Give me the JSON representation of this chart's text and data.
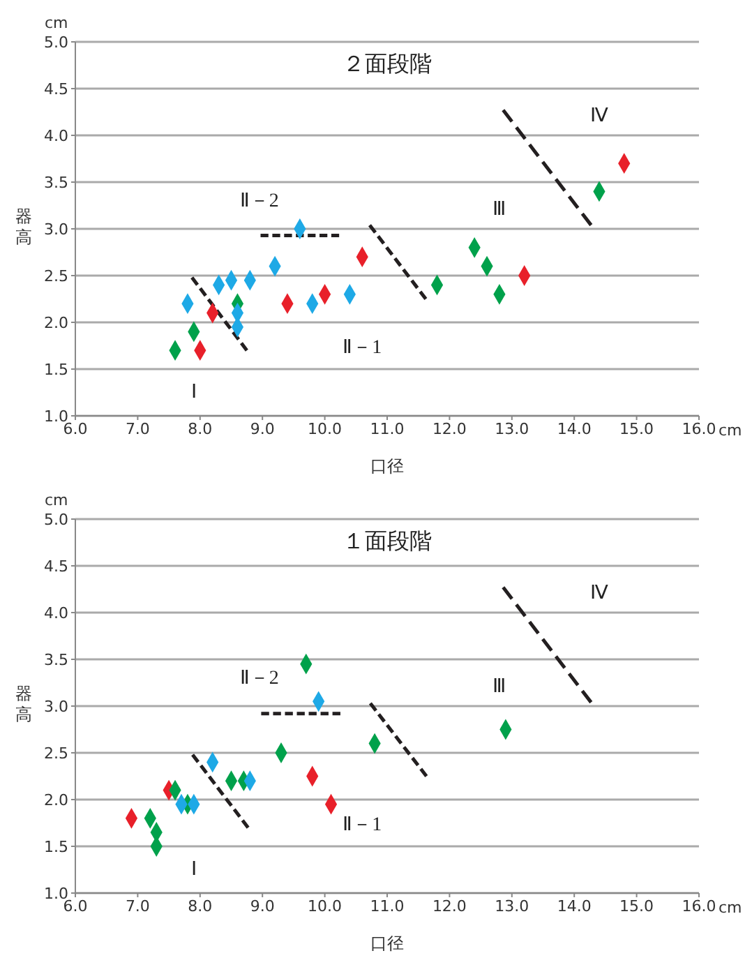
{
  "chart_data": [
    {
      "type": "scatter",
      "title": "２面段階",
      "xlabel": "口径",
      "ylabel": "器高",
      "xlim": [
        6,
        16
      ],
      "ylim": [
        1,
        5
      ],
      "xticks": [
        {
          "value": 6,
          "label": "6.0"
        },
        {
          "value": 7,
          "label": "7.0"
        },
        {
          "value": 8,
          "label": "8.0"
        },
        {
          "value": 9,
          "label": "9.0"
        },
        {
          "value": 10,
          "label": "10.0"
        },
        {
          "value": 11,
          "label": "11.0"
        },
        {
          "value": 12,
          "label": "12.0"
        },
        {
          "value": 13,
          "label": "13.0"
        },
        {
          "value": 14,
          "label": "14.0"
        },
        {
          "value": 15,
          "label": "15.0"
        },
        {
          "value": 16,
          "label": "16.0"
        }
      ],
      "yticks": [
        {
          "value": 1,
          "label": "1.0"
        },
        {
          "value": 1.5,
          "label": "1.5"
        },
        {
          "value": 2,
          "label": "2.0"
        },
        {
          "value": 2.5,
          "label": "2.5"
        },
        {
          "value": 3,
          "label": "3.0"
        },
        {
          "value": 3.5,
          "label": "3.5"
        },
        {
          "value": 4,
          "label": "4.0"
        },
        {
          "value": 4.5,
          "label": "4.5"
        },
        {
          "value": 5,
          "label": "5.0"
        }
      ],
      "grid": "y",
      "marker": "diamond",
      "series": [
        {
          "color": "#e8202a",
          "x": [
            8.0,
            8.2,
            9.4,
            10.0,
            10.6,
            13.2,
            14.8
          ],
          "values": [
            1.7,
            2.1,
            2.2,
            2.3,
            2.7,
            2.5,
            3.7
          ]
        },
        {
          "color": "#00a14b",
          "x": [
            7.6,
            7.9,
            8.6,
            11.8,
            12.4,
            12.6,
            12.8,
            14.4
          ],
          "values": [
            1.7,
            1.9,
            2.2,
            2.4,
            2.8,
            2.6,
            2.3,
            3.4
          ]
        },
        {
          "color": "#1ea9e6",
          "x": [
            7.8,
            8.3,
            8.5,
            8.8,
            8.6,
            8.6,
            9.2,
            9.6,
            9.8,
            10.4
          ],
          "values": [
            2.2,
            2.4,
            2.45,
            2.45,
            2.1,
            1.95,
            2.6,
            3.0,
            2.2,
            2.3
          ]
        },
        {
          "type": "line",
          "color": "#231f20",
          "line_style": "dashed",
          "marker": "none",
          "x": [
            7.87,
            8.75
          ],
          "values": [
            2.48,
            1.7
          ]
        },
        {
          "type": "line",
          "color": "#231f20",
          "line_style": "dashed",
          "marker": "none",
          "x": [
            8.97,
            10.23
          ],
          "values": [
            2.93,
            2.93
          ]
        },
        {
          "type": "line",
          "color": "#231f20",
          "line_style": "dashed",
          "marker": "none",
          "x": [
            10.72,
            11.62
          ],
          "values": [
            3.04,
            2.25
          ]
        },
        {
          "type": "line",
          "color": "#231f20",
          "line_style": "dashed",
          "marker": "none",
          "x": [
            12.86,
            14.27
          ],
          "values": [
            4.27,
            3.04
          ]
        }
      ],
      "annotations": [
        "cm",
        "cm",
        "Ⅰ",
        "Ⅱ－2",
        "Ⅱ－1",
        "Ⅲ",
        "Ⅳ"
      ]
    },
    {
      "type": "scatter",
      "title": "１面段階",
      "xlabel": "口径",
      "ylabel": "器高",
      "xlim": [
        6,
        16
      ],
      "ylim": [
        1,
        5
      ],
      "xticks": [
        {
          "value": 6,
          "label": "6.0"
        },
        {
          "value": 7,
          "label": "7.0"
        },
        {
          "value": 8,
          "label": "8.0"
        },
        {
          "value": 9,
          "label": "9.0"
        },
        {
          "value": 10,
          "label": "10.0"
        },
        {
          "value": 11,
          "label": "11.0"
        },
        {
          "value": 12,
          "label": "12.0"
        },
        {
          "value": 13,
          "label": "13.0"
        },
        {
          "value": 14,
          "label": "14.0"
        },
        {
          "value": 15,
          "label": "15.0"
        },
        {
          "value": 16,
          "label": "16.0"
        }
      ],
      "yticks": [
        {
          "value": 1,
          "label": "1.0"
        },
        {
          "value": 1.5,
          "label": "1.5"
        },
        {
          "value": 2,
          "label": "2.0"
        },
        {
          "value": 2.5,
          "label": "2.5"
        },
        {
          "value": 3,
          "label": "3.0"
        },
        {
          "value": 3.5,
          "label": "3.5"
        },
        {
          "value": 4,
          "label": "4.0"
        },
        {
          "value": 4.5,
          "label": "4.5"
        },
        {
          "value": 5,
          "label": "5.0"
        }
      ],
      "grid": "y",
      "marker": "diamond",
      "series": [
        {
          "color": "#e8202a",
          "x": [
            6.9,
            7.5,
            9.8,
            10.1
          ],
          "values": [
            1.8,
            2.1,
            2.25,
            1.95
          ]
        },
        {
          "color": "#00a14b",
          "x": [
            7.2,
            7.3,
            7.3,
            7.6,
            7.8,
            8.5,
            8.7,
            9.3,
            9.7,
            10.8,
            12.9
          ],
          "values": [
            1.8,
            1.65,
            1.5,
            2.1,
            1.95,
            2.2,
            2.2,
            2.5,
            3.45,
            2.6,
            2.75
          ]
        },
        {
          "color": "#1ea9e6",
          "x": [
            8.2,
            7.7,
            7.9,
            8.8,
            9.9
          ],
          "values": [
            2.4,
            1.95,
            1.95,
            2.2,
            3.05
          ]
        },
        {
          "type": "line",
          "color": "#231f20",
          "line_style": "dashed",
          "marker": "none",
          "x": [
            7.88,
            8.77
          ],
          "values": [
            2.48,
            1.7
          ]
        },
        {
          "type": "line",
          "color": "#231f20",
          "line_style": "dashed",
          "marker": "none",
          "x": [
            8.98,
            10.25
          ],
          "values": [
            2.92,
            2.92
          ]
        },
        {
          "type": "line",
          "color": "#231f20",
          "line_style": "dashed",
          "marker": "none",
          "x": [
            10.73,
            11.63
          ],
          "values": [
            3.03,
            2.25
          ]
        },
        {
          "type": "line",
          "color": "#231f20",
          "line_style": "dashed",
          "marker": "none",
          "x": [
            12.86,
            14.27
          ],
          "values": [
            4.27,
            3.04
          ]
        }
      ],
      "annotations": [
        "cm",
        "cm",
        "Ⅰ",
        "Ⅱ－2",
        "Ⅱ－1",
        "Ⅲ",
        "Ⅳ"
      ]
    }
  ]
}
